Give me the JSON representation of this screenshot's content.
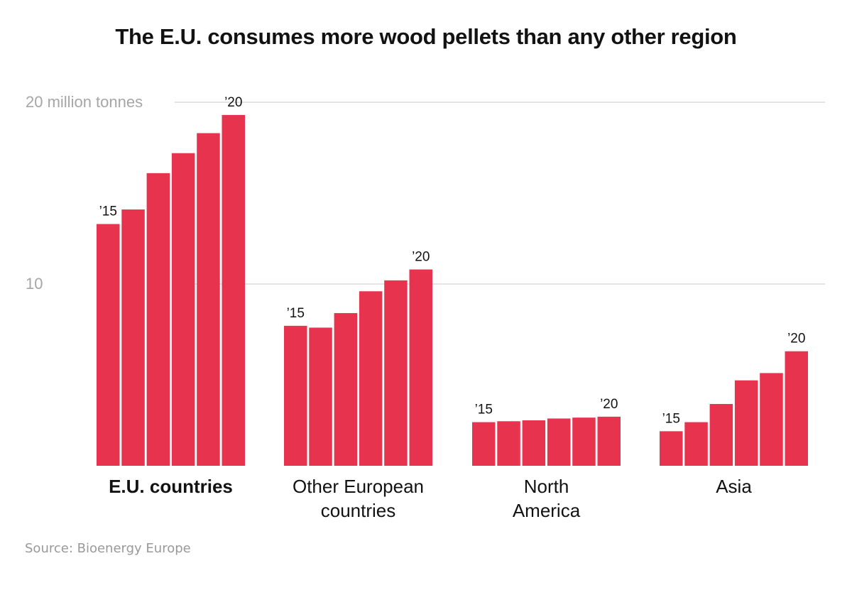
{
  "chart_data": {
    "type": "bar",
    "title": "The E.U. consumes more wood pellets than any other region",
    "y_unit_label": "20 million tonnes",
    "y_ticks": [
      {
        "value": 20,
        "label": "20 million tonnes"
      },
      {
        "value": 10,
        "label": "10"
      }
    ],
    "ylim": [
      0,
      20
    ],
    "years": [
      "2015",
      "2016",
      "2017",
      "2018",
      "2019",
      "2020"
    ],
    "first_year_label": "’15",
    "last_year_label": "’20",
    "bar_color": "#e8334e",
    "grid_color": "#c8c8c8",
    "groups": [
      {
        "label": "E.U. countries",
        "bold": true,
        "label_lines": [
          "E.U. countries"
        ],
        "values": [
          13.3,
          14.1,
          16.1,
          17.2,
          18.3,
          19.3
        ]
      },
      {
        "label": "Other European countries",
        "bold": false,
        "label_lines": [
          "Other European",
          "countries"
        ],
        "values": [
          7.7,
          7.6,
          8.4,
          9.6,
          10.2,
          10.8
        ]
      },
      {
        "label": "North America",
        "bold": false,
        "label_lines": [
          "North",
          "America"
        ],
        "values": [
          2.4,
          2.45,
          2.5,
          2.6,
          2.65,
          2.7
        ]
      },
      {
        "label": "Asia",
        "bold": false,
        "label_lines": [
          "Asia"
        ],
        "values": [
          1.9,
          2.4,
          3.4,
          4.7,
          5.1,
          6.3
        ]
      }
    ]
  },
  "source": "Source: Bioenergy Europe"
}
